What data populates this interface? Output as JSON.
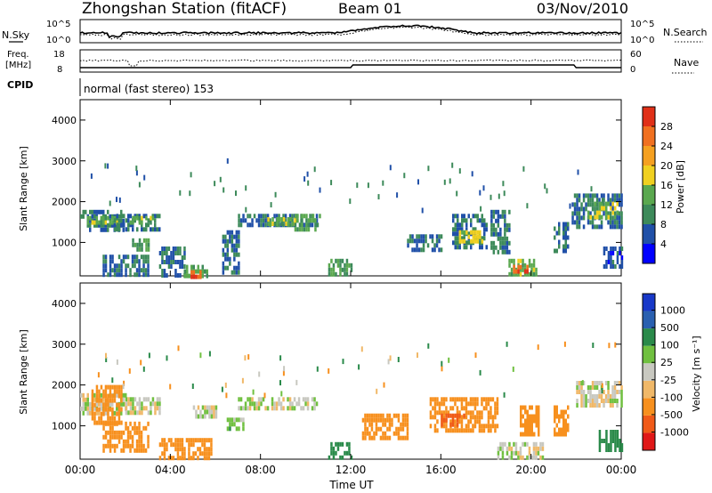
{
  "header": {
    "station": "Zhongshan Station (fitACF)",
    "beam": "Beam 01",
    "date": "03/Nov/2010"
  },
  "top_panels": {
    "nsky_label": "N.Sky",
    "nsearch_label": "N.Search",
    "noise_left_ticks": [
      "10^5",
      "10^0"
    ],
    "noise_right_ticks": [
      "10^5",
      "10^0"
    ],
    "freq_label_line1": "Freq.",
    "freq_label_line2": "[MHz]",
    "freq_ticks": [
      "18",
      "8"
    ],
    "nave_label": "Nave",
    "nave_ticks": [
      "60",
      "0"
    ],
    "cpid_label": "CPID",
    "cpid_text": "normal (fast stereo) 153"
  },
  "colors": {
    "power_scale": [
      "#0000ff",
      "#2050a8",
      "#3d8a5a",
      "#5aa84f",
      "#f0d020",
      "#f5a020",
      "#f07020",
      "#e03018"
    ],
    "velocity_scale": [
      "#e01818",
      "#f05a18",
      "#f7901e",
      "#f0b868",
      "#c8c8c0",
      "#70c040",
      "#2a8a4a",
      "#2a60b0",
      "#1838c8"
    ]
  },
  "chart_data": [
    {
      "type": "heatmap",
      "panel": "power",
      "ylabel": "Slant Range [km]",
      "colorbar_label": "Power [dB]",
      "colorbar_ticks": [
        "28",
        "24",
        "20",
        "16",
        "12",
        "8",
        "4"
      ],
      "y_ticks": [
        "4000",
        "3000",
        "2000",
        "1000"
      ],
      "ylim": [
        180,
        4500
      ],
      "xlim": [
        0,
        24
      ],
      "regions": [
        {
          "t0": 0.0,
          "t1": 2.0,
          "r0": 1300,
          "r1": 1800,
          "v": 8
        },
        {
          "t0": 0.3,
          "t1": 1.6,
          "r0": 1450,
          "r1": 1650,
          "v": 14
        },
        {
          "t0": 1.5,
          "t1": 3.5,
          "r0": 1300,
          "r1": 1700,
          "v": 8
        },
        {
          "t0": 2.2,
          "t1": 3.2,
          "r0": 1450,
          "r1": 1650,
          "v": 14
        },
        {
          "t0": 2.3,
          "t1": 3.0,
          "r0": 800,
          "r1": 1100,
          "v": 13
        },
        {
          "t0": 1.0,
          "t1": 3.0,
          "r0": 180,
          "r1": 700,
          "v": 8
        },
        {
          "t0": 3.5,
          "t1": 4.6,
          "r0": 180,
          "r1": 900,
          "v": 8
        },
        {
          "t0": 4.6,
          "t1": 5.6,
          "r0": 180,
          "r1": 450,
          "v": 13
        },
        {
          "t0": 4.9,
          "t1": 5.3,
          "r0": 180,
          "r1": 320,
          "v": 27
        },
        {
          "t0": 6.3,
          "t1": 7.0,
          "r0": 300,
          "r1": 1300,
          "v": 8
        },
        {
          "t0": 7.0,
          "t1": 10.5,
          "r0": 1400,
          "r1": 1700,
          "v": 8
        },
        {
          "t0": 8.3,
          "t1": 9.5,
          "r0": 1420,
          "r1": 1620,
          "v": 14
        },
        {
          "t0": 9.5,
          "t1": 10.6,
          "r0": 1350,
          "r1": 1700,
          "v": 13
        },
        {
          "t0": 11.0,
          "t1": 12.0,
          "r0": 180,
          "r1": 600,
          "v": 12
        },
        {
          "t0": 14.5,
          "t1": 16.0,
          "r0": 800,
          "r1": 1200,
          "v": 8
        },
        {
          "t0": 16.5,
          "t1": 18.0,
          "r0": 900,
          "r1": 1700,
          "v": 8
        },
        {
          "t0": 16.8,
          "t1": 17.8,
          "r0": 1000,
          "r1": 1300,
          "v": 18
        },
        {
          "t0": 18.2,
          "t1": 19.0,
          "r0": 800,
          "r1": 1800,
          "v": 8
        },
        {
          "t0": 19.0,
          "t1": 20.2,
          "r0": 180,
          "r1": 600,
          "v": 14
        },
        {
          "t0": 19.2,
          "t1": 19.8,
          "r0": 250,
          "r1": 450,
          "v": 27
        },
        {
          "t0": 21.0,
          "t1": 21.6,
          "r0": 800,
          "r1": 1500,
          "v": 8
        },
        {
          "t0": 21.8,
          "t1": 24.0,
          "r0": 1400,
          "r1": 2200,
          "v": 8
        },
        {
          "t0": 22.5,
          "t1": 23.8,
          "r0": 1600,
          "r1": 2000,
          "v": 16
        },
        {
          "t0": 23.2,
          "t1": 24.0,
          "r0": 400,
          "r1": 900,
          "v": 6
        }
      ]
    },
    {
      "type": "heatmap",
      "panel": "velocity",
      "ylabel": "Slant Range [km]",
      "colorbar_label": "Velocity [m s⁻¹]",
      "colorbar_ticks": [
        "1000",
        "500",
        "100",
        "25",
        "-25",
        "-100",
        "-500",
        "-1000"
      ],
      "y_ticks": [
        "4000",
        "3000",
        "2000",
        "1000"
      ],
      "ylim": [
        180,
        4500
      ],
      "xlim": [
        0,
        24
      ],
      "regions": [
        {
          "t0": 0.0,
          "t1": 2.0,
          "r0": 1300,
          "r1": 1800,
          "v": 0
        },
        {
          "t0": 0.5,
          "t1": 1.8,
          "r0": 1100,
          "r1": 2000,
          "v": -300
        },
        {
          "t0": 1.0,
          "t1": 3.0,
          "r0": 400,
          "r1": 1100,
          "v": -300
        },
        {
          "t0": 2.0,
          "t1": 3.5,
          "r0": 1300,
          "r1": 1700,
          "v": 0
        },
        {
          "t0": 3.5,
          "t1": 5.8,
          "r0": 180,
          "r1": 700,
          "v": -200
        },
        {
          "t0": 5.0,
          "t1": 6.0,
          "r0": 1200,
          "r1": 1500,
          "v": 0
        },
        {
          "t0": 6.5,
          "t1": 7.2,
          "r0": 900,
          "r1": 1200,
          "v": 60
        },
        {
          "t0": 7.0,
          "t1": 10.5,
          "r0": 1400,
          "r1": 1700,
          "v": 0
        },
        {
          "t0": 11.0,
          "t1": 12.0,
          "r0": 180,
          "r1": 600,
          "v": 200
        },
        {
          "t0": 12.5,
          "t1": 14.5,
          "r0": 700,
          "r1": 1300,
          "v": -200
        },
        {
          "t0": 15.5,
          "t1": 18.5,
          "r0": 900,
          "r1": 1700,
          "v": -300
        },
        {
          "t0": 16.0,
          "t1": 17.0,
          "r0": 1000,
          "r1": 1300,
          "v": -700
        },
        {
          "t0": 18.5,
          "t1": 20.5,
          "r0": 180,
          "r1": 600,
          "v": 0
        },
        {
          "t0": 19.5,
          "t1": 20.3,
          "r0": 800,
          "r1": 1500,
          "v": -200
        },
        {
          "t0": 21.0,
          "t1": 21.6,
          "r0": 800,
          "r1": 1500,
          "v": -400
        },
        {
          "t0": 22.0,
          "t1": 24.0,
          "r0": 1500,
          "r1": 2100,
          "v": 0
        },
        {
          "t0": 23.0,
          "t1": 24.0,
          "r0": 400,
          "r1": 900,
          "v": 200
        }
      ]
    }
  ],
  "x_axis": {
    "label": "Time UT",
    "ticks": [
      "00:00",
      "04:00",
      "08:00",
      "12:00",
      "16:00",
      "20:00",
      "00:00"
    ]
  }
}
